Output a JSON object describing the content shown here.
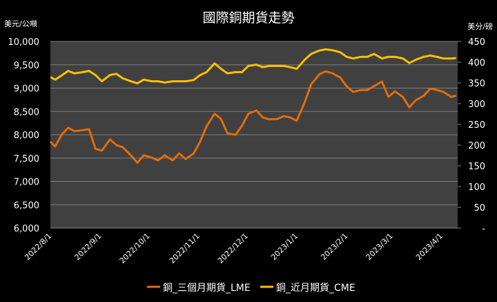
{
  "chart_data": {
    "type": "line",
    "title": "國際銅期貨走勢",
    "ylabel_left": "美元/公噸",
    "ylabel_right": "美分/磅",
    "ylim_left": [
      6000,
      10000
    ],
    "ylim_right": [
      0,
      450
    ],
    "yticks_left": [
      "6,000",
      "6,500",
      "7,000",
      "7,500",
      "8,000",
      "8,500",
      "9,000",
      "9,500",
      "10,000"
    ],
    "yticks_right": [
      "-",
      "50",
      "100",
      "150",
      "200",
      "250",
      "300",
      "350",
      "400",
      "450"
    ],
    "xlim": [
      "2022-07-31",
      "2023-04-10"
    ],
    "xticks": [
      {
        "date": "2022-08-01",
        "label": "2022/8/1"
      },
      {
        "date": "2022-09-01",
        "label": "2022/9/1"
      },
      {
        "date": "2022-10-01",
        "label": "2022/10/1"
      },
      {
        "date": "2022-11-01",
        "label": "2022/11/1"
      },
      {
        "date": "2022-12-01",
        "label": "2022/12/1"
      },
      {
        "date": "2023-01-01",
        "label": "2023/1/1"
      },
      {
        "date": "2023-02-01",
        "label": "2023/2/1"
      },
      {
        "date": "2023-03-01",
        "label": "2023/3/1"
      },
      {
        "date": "2023-04-01",
        "label": "2023/4/1"
      }
    ],
    "grid": true,
    "legend_position": "bottom",
    "dates": [
      "2022-07-31",
      "2022-08-03",
      "2022-08-07",
      "2022-08-11",
      "2022-08-15",
      "2022-08-20",
      "2022-08-24",
      "2022-08-28",
      "2022-09-01",
      "2022-09-06",
      "2022-09-10",
      "2022-09-14",
      "2022-09-19",
      "2022-09-23",
      "2022-09-27",
      "2022-10-02",
      "2022-10-06",
      "2022-10-10",
      "2022-10-15",
      "2022-10-19",
      "2022-10-23",
      "2022-10-28",
      "2022-11-01",
      "2022-11-05",
      "2022-11-10",
      "2022-11-14",
      "2022-11-18",
      "2022-11-23",
      "2022-11-27",
      "2022-12-01",
      "2022-12-06",
      "2022-12-10",
      "2022-12-14",
      "2022-12-19",
      "2022-12-23",
      "2022-12-27",
      "2022-12-31",
      "2023-01-05",
      "2023-01-09",
      "2023-01-14",
      "2023-01-18",
      "2023-01-22",
      "2023-01-27",
      "2023-01-31",
      "2023-02-04",
      "2023-02-09",
      "2023-02-13",
      "2023-02-17",
      "2023-02-22",
      "2023-02-26",
      "2023-03-02",
      "2023-03-07",
      "2023-03-11",
      "2023-03-15",
      "2023-03-20",
      "2023-03-24",
      "2023-03-28",
      "2023-04-01",
      "2023-04-06",
      "2023-04-09"
    ],
    "series": [
      {
        "name": "銅_三個月期貨_LME",
        "axis": "left",
        "color": "#E46C0A",
        "values": [
          7850,
          7750,
          8000,
          8150,
          8075,
          8100,
          8120,
          7700,
          7660,
          7900,
          7780,
          7730,
          7560,
          7400,
          7560,
          7510,
          7450,
          7560,
          7450,
          7600,
          7480,
          7600,
          7850,
          8180,
          8450,
          8340,
          8030,
          8000,
          8190,
          8450,
          8520,
          8370,
          8330,
          8340,
          8400,
          8370,
          8300,
          8700,
          9080,
          9290,
          9360,
          9320,
          9230,
          9040,
          8920,
          8960,
          8960,
          9040,
          9140,
          8810,
          8930,
          8810,
          8590,
          8740,
          8840,
          8990,
          8960,
          8920,
          8810,
          8840
        ]
      },
      {
        "name": "銅_近月期貨_CME",
        "axis": "right",
        "color": "#FFC000",
        "values": [
          364,
          358,
          368,
          379,
          373,
          376,
          379,
          369,
          354,
          369,
          372,
          361,
          354,
          349,
          358,
          354,
          354,
          351,
          354,
          354,
          354,
          357,
          369,
          376,
          397,
          384,
          373,
          376,
          376,
          391,
          394,
          388,
          391,
          391,
          391,
          388,
          384,
          406,
          420,
          428,
          431,
          429,
          424,
          413,
          409,
          413,
          413,
          420,
          409,
          413,
          413,
          409,
          398,
          406,
          413,
          416,
          413,
          409,
          409,
          410
        ]
      }
    ],
    "colors": {
      "background": "#000000",
      "plot_area": "#404040",
      "grid": "#7f7f7f"
    }
  }
}
